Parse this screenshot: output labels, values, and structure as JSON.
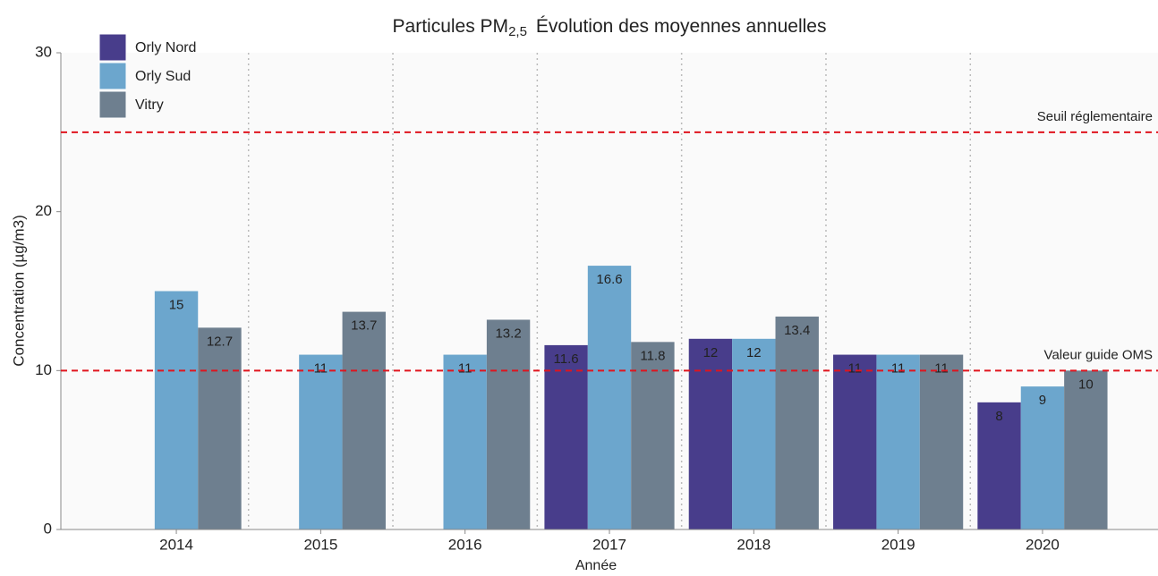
{
  "chart_data": {
    "type": "bar",
    "title": {
      "main": "Particules PM",
      "subscript": "2,5",
      "rest": "Évolution des moyennes annuelles"
    },
    "x_label": "Année",
    "y_label": "Concentration (µg/m3)",
    "categories": [
      "2014",
      "2015",
      "2016",
      "2017",
      "2018",
      "2019",
      "2020"
    ],
    "series": [
      {
        "name": "Orly Nord",
        "color": "#483d8b",
        "values": [
          null,
          null,
          null,
          11.6,
          12,
          11,
          8
        ]
      },
      {
        "name": "Orly Sud",
        "color": "#6ca6cd",
        "values": [
          15,
          11,
          11,
          16.6,
          12,
          11,
          9
        ]
      },
      {
        "name": "Vitry",
        "color": "#6e7f8f",
        "values": [
          12.7,
          13.7,
          13.2,
          11.8,
          13.4,
          11,
          10
        ]
      }
    ],
    "reference_lines": [
      {
        "value": 25,
        "label": "Seuil réglementaire",
        "color": "#e0141e"
      },
      {
        "value": 10,
        "label": "Valeur guide OMS",
        "color": "#e0141e"
      }
    ],
    "ylim": [
      0,
      30
    ],
    "yticks": [
      0,
      10,
      20,
      30
    ],
    "legend": "top-left"
  }
}
